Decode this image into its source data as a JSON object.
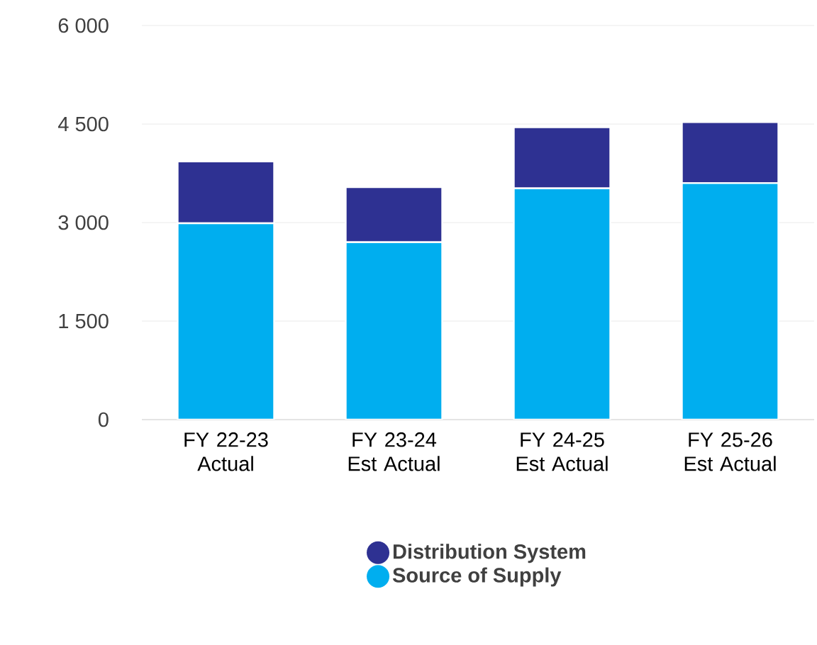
{
  "chart_data": {
    "type": "bar",
    "stacked": true,
    "categories": [
      "FY 22-23 Actual",
      "FY 23-24 Est Actual",
      "FY 24-25 Est Actual",
      "FY 25-26 Est Actual"
    ],
    "series": [
      {
        "name": "Source of Supply",
        "color": "#00aeef",
        "values": [
          2990,
          2700,
          3520,
          3600
        ]
      },
      {
        "name": "Distribution System",
        "color": "#2e3192",
        "values": [
          940,
          840,
          930,
          930
        ]
      }
    ],
    "ylim": [
      0,
      6000
    ],
    "yticks": [
      {
        "value": 0,
        "label": "0"
      },
      {
        "value": 1500,
        "label": "1 500"
      },
      {
        "value": 3000,
        "label": "3 000"
      },
      {
        "value": 4500,
        "label": "4 500"
      },
      {
        "value": 6000,
        "label": "6 000"
      }
    ],
    "grid": "y",
    "legend": "bottom"
  }
}
